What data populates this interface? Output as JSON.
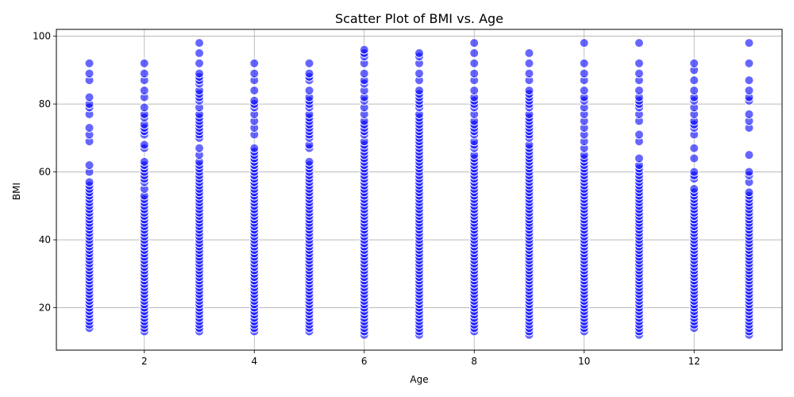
{
  "chart_data": {
    "type": "scatter",
    "title": "Scatter Plot of BMI vs. Age",
    "xlabel": "Age",
    "ylabel": "BMI",
    "xlim": [
      0.4,
      13.6
    ],
    "ylim": [
      7.5,
      102
    ],
    "xticks": [
      2,
      4,
      6,
      8,
      10,
      12
    ],
    "yticks": [
      20,
      40,
      60,
      80,
      100
    ],
    "grid": true,
    "marker_color": "#0000ff",
    "series": [
      {
        "x": 1,
        "y": [
          14,
          15,
          16,
          17,
          18,
          19,
          20,
          21,
          22,
          23,
          24,
          25,
          26,
          27,
          28,
          29,
          30,
          31,
          32,
          33,
          34,
          35,
          36,
          37,
          38,
          39,
          40,
          41,
          42,
          43,
          44,
          45,
          46,
          47,
          48,
          49,
          50,
          51,
          52,
          53,
          54,
          55,
          56,
          57,
          60,
          62,
          69,
          71,
          73,
          77,
          79,
          80,
          82,
          87,
          89,
          92
        ]
      },
      {
        "x": 2,
        "y": [
          13,
          14,
          15,
          16,
          17,
          18,
          19,
          20,
          21,
          22,
          23,
          24,
          25,
          26,
          27,
          28,
          29,
          30,
          31,
          32,
          33,
          34,
          35,
          36,
          37,
          38,
          39,
          40,
          41,
          42,
          43,
          44,
          45,
          46,
          47,
          48,
          49,
          50,
          51,
          52,
          53,
          55,
          57,
          58,
          59,
          60,
          61,
          62,
          63,
          67,
          68,
          71,
          72,
          73,
          74,
          76,
          77,
          79,
          82,
          84,
          87,
          89,
          92
        ]
      },
      {
        "x": 3,
        "y": [
          13,
          14,
          15,
          16,
          17,
          18,
          19,
          20,
          21,
          22,
          23,
          24,
          25,
          26,
          27,
          28,
          29,
          30,
          31,
          32,
          33,
          34,
          35,
          36,
          37,
          38,
          39,
          40,
          41,
          42,
          43,
          44,
          45,
          46,
          47,
          48,
          49,
          50,
          51,
          52,
          53,
          54,
          55,
          56,
          57,
          58,
          59,
          60,
          61,
          62,
          63,
          65,
          67,
          70,
          71,
          72,
          73,
          74,
          75,
          76,
          77,
          79,
          81,
          82,
          83,
          84,
          86,
          87,
          88,
          89,
          92,
          95,
          98
        ]
      },
      {
        "x": 4,
        "y": [
          13,
          14,
          15,
          16,
          17,
          18,
          19,
          20,
          21,
          22,
          23,
          24,
          25,
          26,
          27,
          28,
          29,
          30,
          31,
          32,
          33,
          34,
          35,
          36,
          37,
          38,
          39,
          40,
          41,
          42,
          43,
          44,
          45,
          46,
          47,
          48,
          49,
          50,
          51,
          52,
          53,
          54,
          55,
          56,
          57,
          58,
          59,
          60,
          61,
          62,
          63,
          64,
          65,
          66,
          67,
          71,
          73,
          75,
          77,
          79,
          80,
          81,
          84,
          87,
          89,
          92
        ]
      },
      {
        "x": 5,
        "y": [
          13,
          14,
          15,
          16,
          17,
          18,
          19,
          20,
          21,
          22,
          23,
          24,
          25,
          26,
          27,
          28,
          29,
          30,
          31,
          32,
          33,
          34,
          35,
          36,
          37,
          38,
          39,
          40,
          41,
          42,
          43,
          44,
          45,
          46,
          47,
          48,
          49,
          50,
          51,
          52,
          53,
          54,
          55,
          56,
          57,
          58,
          59,
          60,
          61,
          62,
          63,
          67,
          68,
          70,
          71,
          72,
          73,
          74,
          75,
          76,
          77,
          79,
          80,
          81,
          82,
          84,
          87,
          88,
          89,
          92
        ]
      },
      {
        "x": 6,
        "y": [
          12,
          13,
          14,
          15,
          16,
          17,
          18,
          19,
          20,
          21,
          22,
          23,
          24,
          25,
          26,
          27,
          28,
          29,
          30,
          31,
          32,
          33,
          34,
          35,
          36,
          37,
          38,
          39,
          40,
          41,
          42,
          43,
          44,
          45,
          46,
          47,
          48,
          49,
          50,
          51,
          52,
          53,
          54,
          55,
          56,
          57,
          58,
          59,
          60,
          61,
          62,
          63,
          64,
          65,
          66,
          67,
          68,
          69,
          71,
          72,
          73,
          74,
          75,
          77,
          79,
          81,
          82,
          84,
          86,
          87,
          89,
          92,
          94,
          95,
          96
        ]
      },
      {
        "x": 7,
        "y": [
          12,
          13,
          14,
          15,
          16,
          17,
          18,
          19,
          20,
          21,
          22,
          23,
          24,
          25,
          26,
          27,
          28,
          29,
          30,
          31,
          32,
          33,
          34,
          35,
          36,
          37,
          38,
          39,
          40,
          41,
          42,
          43,
          44,
          45,
          46,
          47,
          48,
          49,
          50,
          51,
          52,
          53,
          54,
          55,
          56,
          57,
          58,
          59,
          60,
          61,
          62,
          63,
          64,
          65,
          66,
          67,
          68,
          69,
          70,
          71,
          72,
          73,
          74,
          75,
          76,
          77,
          79,
          80,
          81,
          82,
          83,
          84,
          87,
          89,
          92,
          94,
          95
        ]
      },
      {
        "x": 8,
        "y": [
          13,
          14,
          15,
          16,
          17,
          18,
          19,
          20,
          21,
          22,
          23,
          24,
          25,
          26,
          27,
          28,
          29,
          30,
          31,
          32,
          33,
          34,
          35,
          36,
          37,
          38,
          39,
          40,
          41,
          42,
          43,
          44,
          45,
          46,
          47,
          48,
          49,
          50,
          51,
          52,
          53,
          54,
          55,
          56,
          57,
          58,
          59,
          60,
          61,
          62,
          63,
          64,
          65,
          67,
          68,
          69,
          71,
          72,
          73,
          74,
          75,
          77,
          79,
          80,
          81,
          82,
          84,
          87,
          89,
          92,
          95,
          98
        ]
      },
      {
        "x": 9,
        "y": [
          12,
          13,
          14,
          15,
          16,
          17,
          18,
          19,
          20,
          21,
          22,
          23,
          24,
          25,
          26,
          27,
          28,
          29,
          30,
          31,
          32,
          33,
          34,
          35,
          36,
          37,
          38,
          39,
          40,
          41,
          42,
          43,
          44,
          45,
          46,
          47,
          48,
          49,
          50,
          51,
          52,
          53,
          54,
          55,
          56,
          57,
          58,
          59,
          60,
          61,
          62,
          63,
          64,
          65,
          66,
          67,
          68,
          70,
          71,
          72,
          73,
          74,
          75,
          76,
          77,
          79,
          80,
          81,
          82,
          83,
          84,
          87,
          89,
          92,
          95
        ]
      },
      {
        "x": 10,
        "y": [
          13,
          14,
          15,
          16,
          17,
          18,
          19,
          20,
          21,
          22,
          23,
          24,
          25,
          26,
          27,
          28,
          29,
          30,
          31,
          32,
          33,
          34,
          35,
          36,
          37,
          38,
          39,
          40,
          41,
          42,
          43,
          44,
          45,
          46,
          47,
          48,
          49,
          50,
          51,
          52,
          53,
          54,
          55,
          56,
          57,
          58,
          59,
          60,
          61,
          62,
          63,
          64,
          65,
          67,
          69,
          71,
          73,
          75,
          77,
          79,
          81,
          82,
          84,
          87,
          89,
          92,
          98
        ]
      },
      {
        "x": 11,
        "y": [
          12,
          13,
          14,
          15,
          16,
          17,
          18,
          19,
          20,
          21,
          22,
          23,
          24,
          25,
          26,
          27,
          28,
          29,
          30,
          31,
          32,
          33,
          34,
          35,
          36,
          37,
          38,
          39,
          40,
          41,
          42,
          43,
          44,
          45,
          46,
          47,
          48,
          49,
          50,
          51,
          52,
          53,
          54,
          55,
          56,
          57,
          58,
          59,
          60,
          61,
          62,
          64,
          69,
          71,
          75,
          77,
          79,
          80,
          81,
          82,
          84,
          87,
          89,
          92,
          98
        ]
      },
      {
        "x": 12,
        "y": [
          14,
          15,
          16,
          17,
          18,
          19,
          20,
          21,
          22,
          23,
          24,
          25,
          26,
          27,
          28,
          29,
          30,
          31,
          32,
          33,
          34,
          35,
          36,
          37,
          38,
          39,
          40,
          41,
          42,
          43,
          44,
          45,
          46,
          47,
          48,
          49,
          50,
          51,
          52,
          53,
          54,
          55,
          58,
          59,
          60,
          64,
          67,
          71,
          73,
          74,
          75,
          77,
          79,
          81,
          82,
          84,
          87,
          90,
          92
        ]
      },
      {
        "x": 13,
        "y": [
          12,
          13,
          14,
          15,
          16,
          17,
          18,
          19,
          20,
          21,
          22,
          23,
          24,
          25,
          26,
          27,
          28,
          29,
          30,
          31,
          32,
          33,
          34,
          35,
          36,
          37,
          38,
          39,
          40,
          41,
          42,
          43,
          44,
          45,
          46,
          47,
          48,
          49,
          50,
          51,
          52,
          53,
          54,
          57,
          59,
          60,
          65,
          73,
          75,
          77,
          81,
          82,
          84,
          87,
          92,
          98
        ]
      }
    ]
  }
}
